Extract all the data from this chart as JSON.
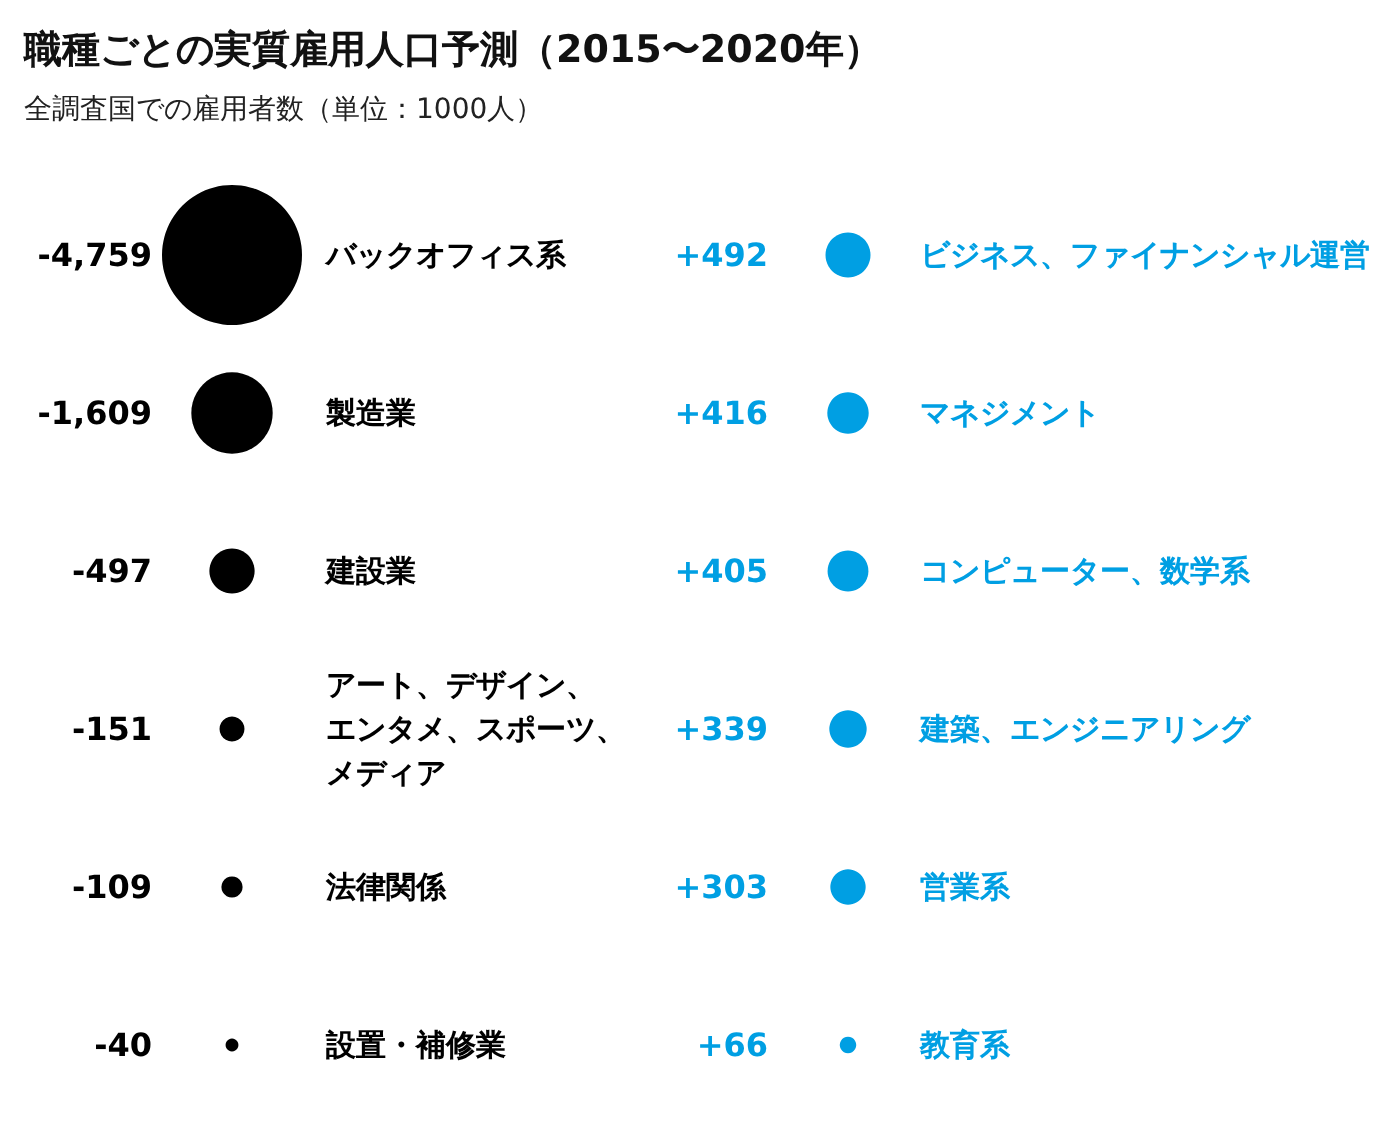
{
  "chart_data": [
    {
      "type": "other",
      "title": "職種ごとの実質雇用人口予測（2015〜2020年）",
      "subtitle": "全調査国での雇用者数（単位：1000人）",
      "categories": [
        "バックオフィス系",
        "製造業",
        "建設業",
        "アート、デザイン、エンタメ、スポーツ、メディア",
        "法律関係",
        "設置・補修業"
      ],
      "values": [
        -4759,
        -1609,
        -497,
        -151,
        -109,
        -40
      ],
      "value_labels": [
        "-4,759",
        "-1,609",
        "-497",
        "-151",
        "-109",
        "-40"
      ],
      "color": "#000000"
    },
    {
      "type": "other",
      "categories": [
        "ビジネス、ファイナンシャル運営",
        "マネジメント",
        "コンピューター、数学系",
        "建築、エンジニアリング",
        "営業系",
        "教育系"
      ],
      "values": [
        492,
        416,
        405,
        339,
        303,
        66
      ],
      "value_labels": [
        "+492",
        "+416",
        "+405",
        "+339",
        "+303",
        "+66"
      ],
      "color": "#009fe3"
    }
  ]
}
